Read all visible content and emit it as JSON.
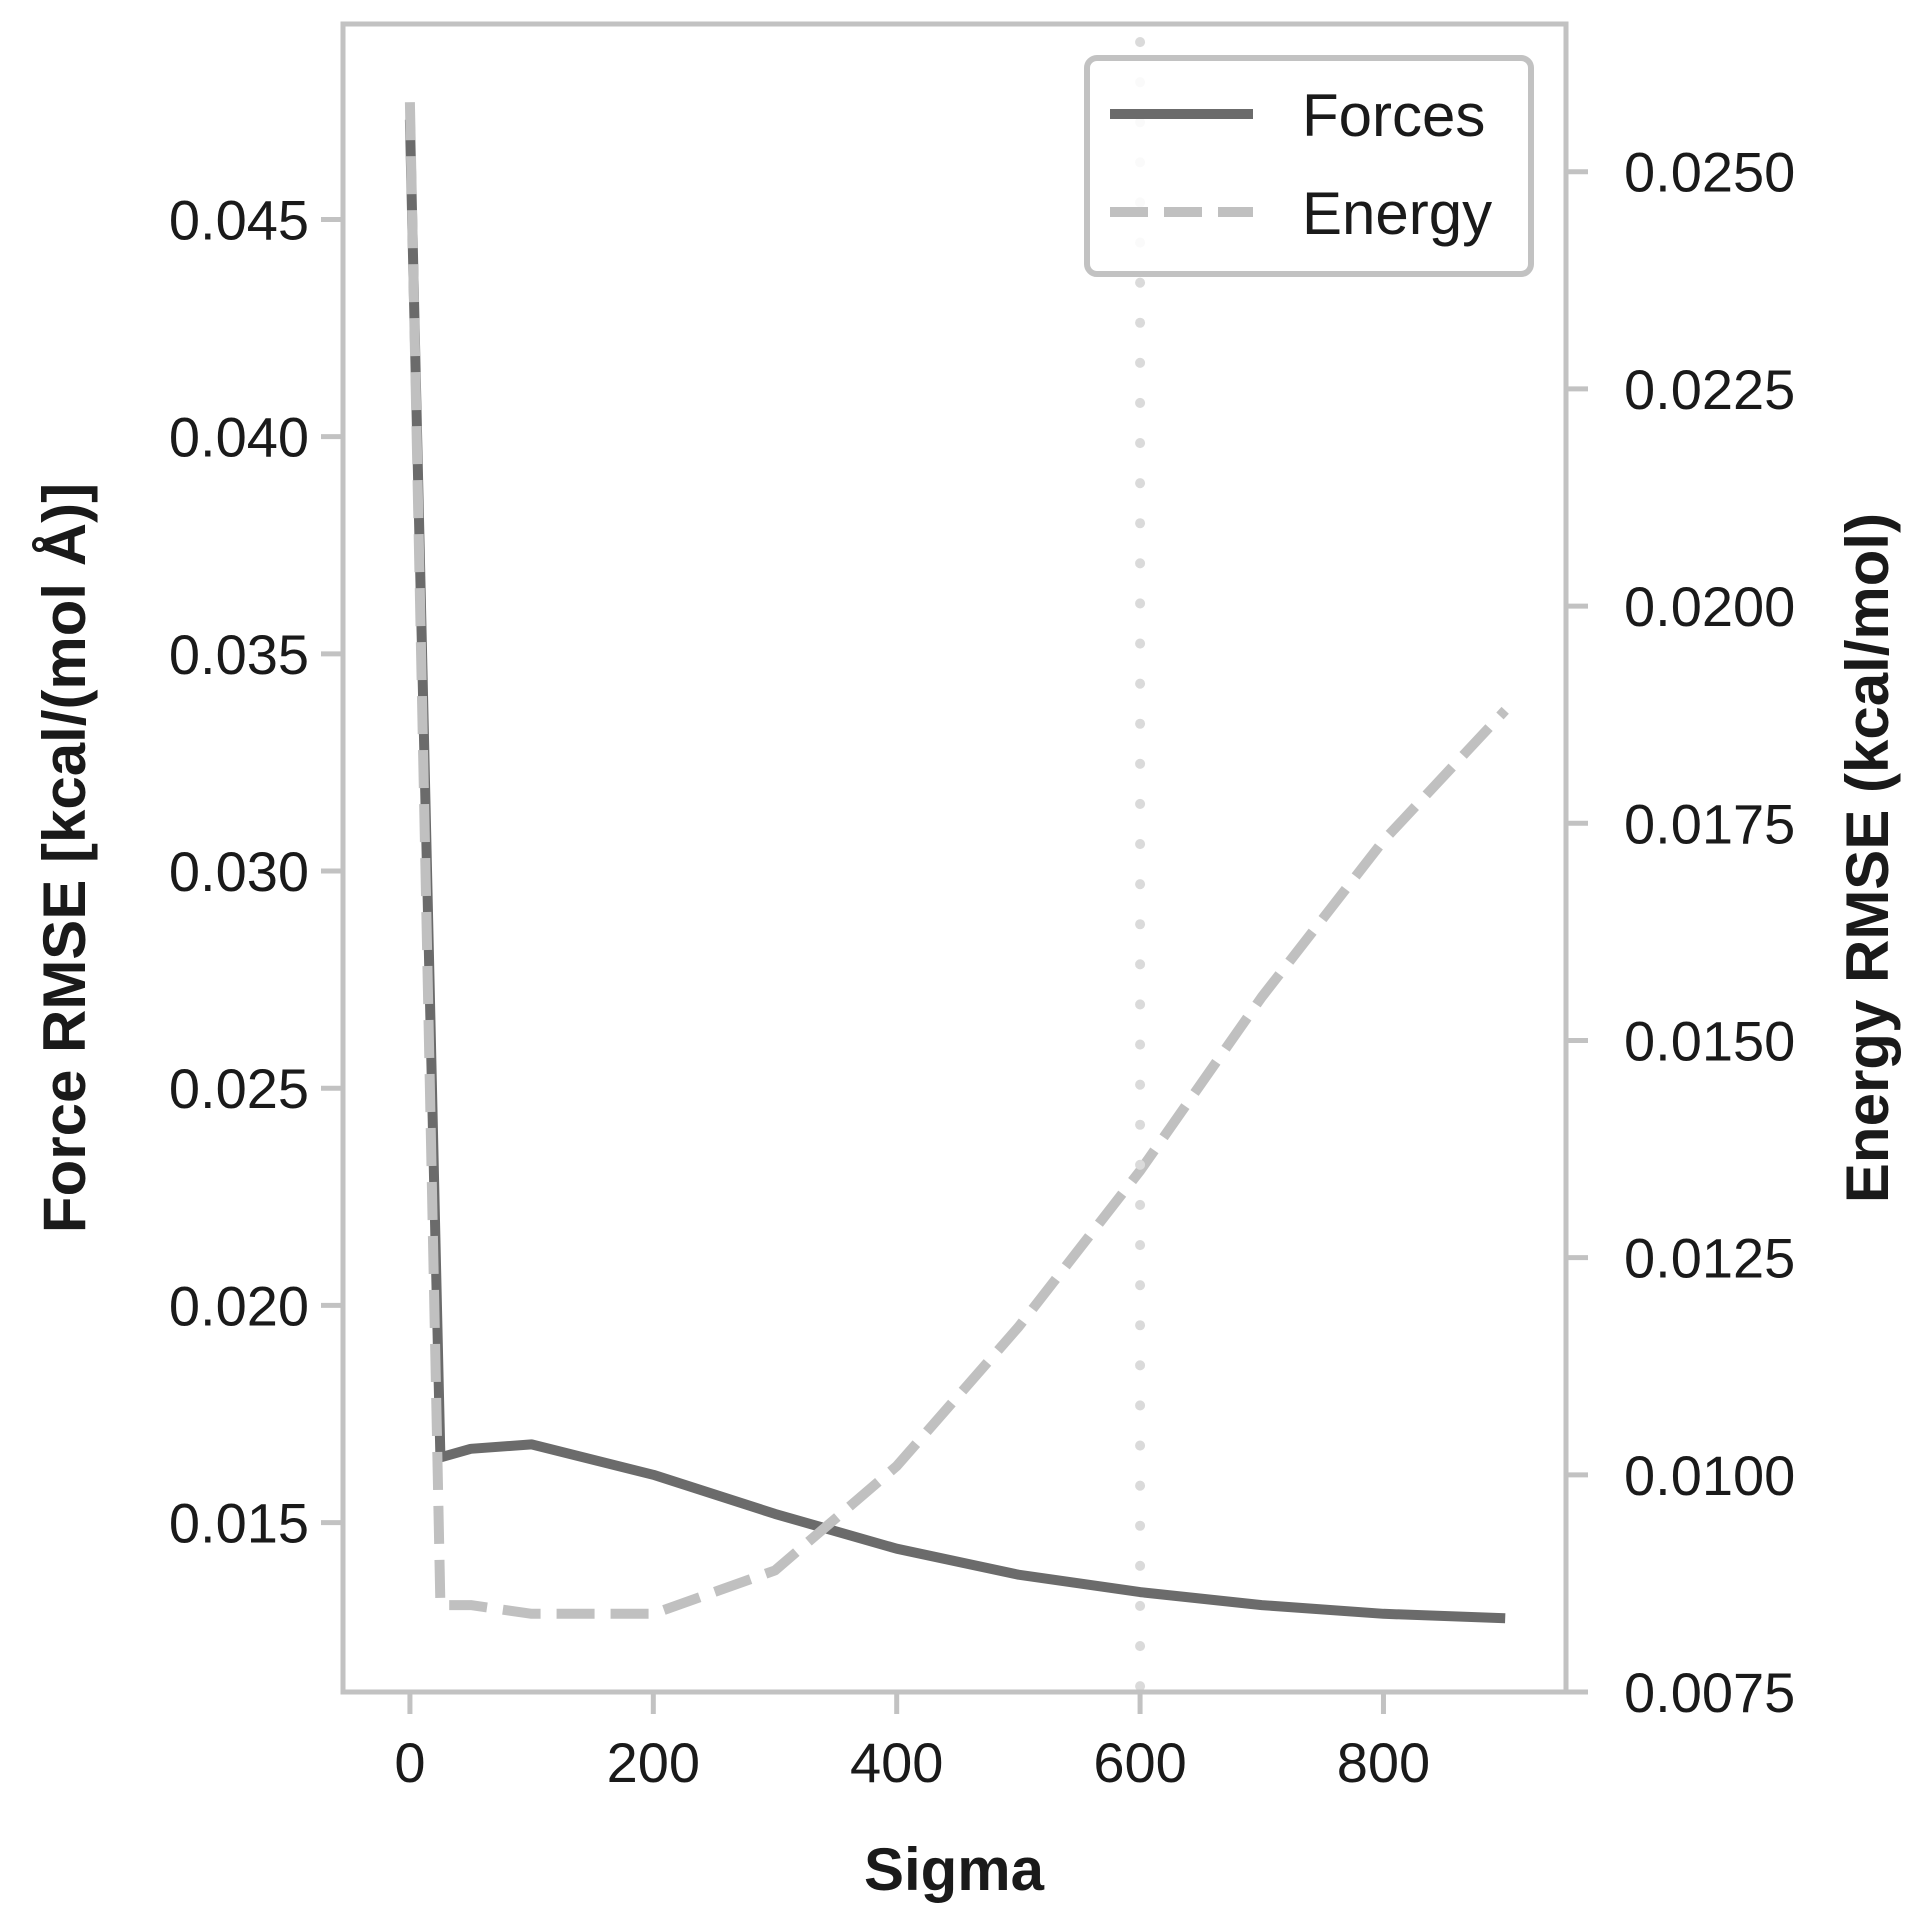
{
  "chart_data": {
    "type": "line",
    "title": "",
    "xlabel": "Sigma",
    "ylabel": "Force RMSE [kcal/(mol Å)]",
    "ylabel_right": "Energy RMSE (kcal/mol)",
    "xlim": [
      -55,
      950
    ],
    "ylim": [
      0.0111,
      0.0495
    ],
    "ylim_right": [
      0.0075,
      0.0267
    ],
    "x_ticks": [
      "0",
      "200",
      "400",
      "600",
      "800"
    ],
    "x_tick_values": [
      0,
      200,
      400,
      600,
      800
    ],
    "y_ticks": [
      "0.015",
      "0.020",
      "0.025",
      "0.030",
      "0.035",
      "0.040",
      "0.045"
    ],
    "y_tick_values": [
      0.015,
      0.02,
      0.025,
      0.03,
      0.035,
      0.04,
      0.045
    ],
    "y_ticks_right": [
      "0.0075",
      "0.0100",
      "0.0125",
      "0.0150",
      "0.0175",
      "0.0200",
      "0.0225",
      "0.0250"
    ],
    "y_tick_values_right": [
      0.0075,
      0.01,
      0.0125,
      0.015,
      0.0175,
      0.02,
      0.0225,
      0.025
    ],
    "vline_x": 600,
    "grid": false,
    "legend_position": "top-right",
    "series": [
      {
        "name": "Forces",
        "axis": "left",
        "color": "#6b6b6b",
        "style": "solid",
        "x": [
          0,
          25,
          50,
          100,
          200,
          300,
          400,
          500,
          600,
          700,
          800,
          900
        ],
        "values": [
          0.0473,
          0.0165,
          0.0167,
          0.0168,
          0.0161,
          0.0152,
          0.0144,
          0.0138,
          0.0134,
          0.0131,
          0.0129,
          0.0128
        ]
      },
      {
        "name": "Energy",
        "axis": "right",
        "color": "#c0c0c0",
        "style": "dashed",
        "x": [
          0,
          25,
          50,
          100,
          200,
          300,
          400,
          500,
          600,
          700,
          800,
          900
        ],
        "values": [
          0.0258,
          0.0085,
          0.0085,
          0.0084,
          0.0084,
          0.0089,
          0.0101,
          0.0117,
          0.0135,
          0.0155,
          0.0173,
          0.0188
        ]
      }
    ]
  }
}
